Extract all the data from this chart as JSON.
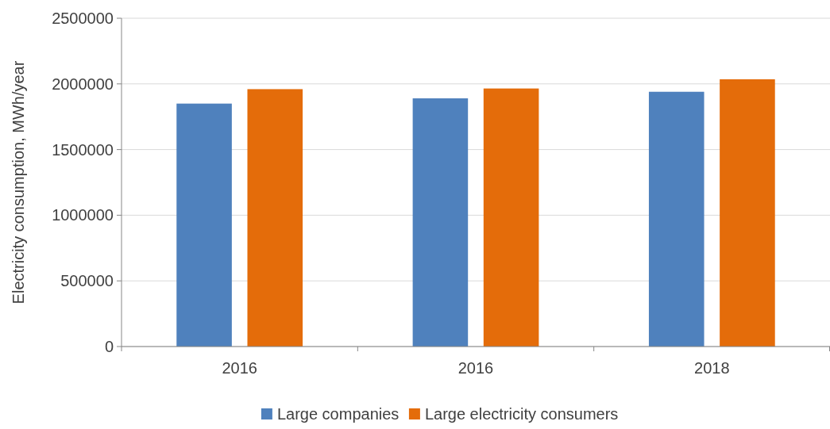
{
  "chart_data": {
    "type": "bar",
    "categories": [
      "2016",
      "2016",
      "2018"
    ],
    "series": [
      {
        "name": "Large companies",
        "color": "#4f81bd",
        "values": [
          1850000,
          1890000,
          1940000
        ]
      },
      {
        "name": "Large electricity consumers",
        "color": "#e46c0a",
        "values": [
          1960000,
          1965000,
          2035000
        ]
      }
    ],
    "ylabel": "Electricity consumption, MWh/year",
    "ylim": [
      0,
      2500000
    ],
    "yticks": [
      0,
      500000,
      1000000,
      1500000,
      2000000,
      2500000
    ],
    "grid": "y",
    "legend": "bottom"
  }
}
